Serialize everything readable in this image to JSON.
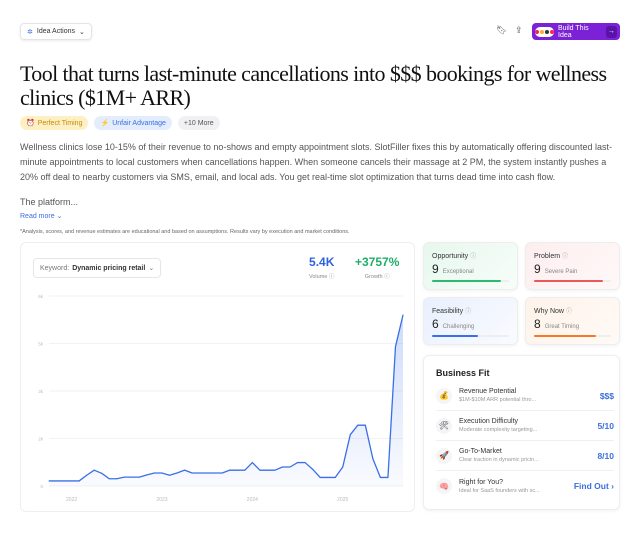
{
  "toolbar": {
    "idea_actions": "Idea Actions",
    "build_label": "Build This Idea"
  },
  "title": "Tool that turns last-minute cancellations into $$$ bookings for wellness clinics ($1M+ ARR)",
  "tags": [
    {
      "icon": "⏰",
      "label": "Perfect Timing",
      "color": "#fdf0c4",
      "text": "#c98a00"
    },
    {
      "icon": "⚡",
      "label": "Unfair Advantage",
      "color": "#e3edfd",
      "text": "#3b6fe0"
    },
    {
      "icon": "",
      "label": "+10 More",
      "color": "#f1f1f3",
      "text": "#555"
    }
  ],
  "description": "Wellness clinics lose 10-15% of their revenue to no-shows and empty appointment slots. SlotFiller fixes this by automatically offering discounted last-minute appointments to local customers when cancellations happen. When someone cancels their massage at 2 PM, the system instantly pushes a 20% off deal to nearby customers via SMS, email, and local ads. You get real-time slot optimization that turns dead time into cash flow.",
  "more_text": "The platform...",
  "read_more": "Read more",
  "disclaimer": "*Analysis, scores, and revenue estimates are educational and based on assumptions. Results vary by execution and market conditions.",
  "trend": {
    "keyword_label": "Keyword:",
    "keyword": "Dynamic pricing retail",
    "volume": "5.4K",
    "volume_label": "Volume",
    "growth": "+3757%",
    "growth_label": "Growth",
    "line_color": "#3b6fe8"
  },
  "chart_data": {
    "type": "area",
    "ylim": [
      0,
      6000
    ],
    "y_ticks": [
      "0",
      "2k",
      "3k",
      "5k",
      "6k"
    ],
    "x_ticks": [
      "2022",
      "2023",
      "2024",
      "2025"
    ],
    "x": [
      "2021-10",
      "2021-11",
      "2021-12",
      "2022-01",
      "2022-02",
      "2022-03",
      "2022-04",
      "2022-05",
      "2022-06",
      "2022-07",
      "2022-08",
      "2022-09",
      "2022-10",
      "2022-11",
      "2022-12",
      "2023-01",
      "2023-02",
      "2023-03",
      "2023-04",
      "2023-05",
      "2023-06",
      "2023-07",
      "2023-08",
      "2023-09",
      "2023-10",
      "2023-11",
      "2023-12",
      "2024-01",
      "2024-02",
      "2024-03",
      "2024-04",
      "2024-05",
      "2024-06",
      "2024-07",
      "2024-08",
      "2024-09",
      "2024-10",
      "2024-11",
      "2024-12",
      "2025-01",
      "2025-02",
      "2025-03",
      "2025-04",
      "2025-05",
      "2025-06",
      "2025-07",
      "2025-08",
      "2025-09"
    ],
    "values": [
      160,
      160,
      160,
      160,
      160,
      340,
      500,
      400,
      230,
      230,
      280,
      280,
      280,
      350,
      410,
      410,
      340,
      410,
      500,
      410,
      410,
      410,
      410,
      410,
      500,
      500,
      500,
      740,
      500,
      500,
      500,
      600,
      600,
      740,
      740,
      530,
      270,
      270,
      270,
      600,
      1620,
      1920,
      1920,
      860,
      270,
      270,
      4400,
      5400
    ]
  },
  "scores": [
    {
      "title": "Opportunity",
      "value": "9",
      "label": "Exceptional",
      "fraction": 0.9,
      "color": "#2eb872",
      "bg": "linear-gradient(135deg,#e7f8ee,#f7fdf9)"
    },
    {
      "title": "Problem",
      "value": "9",
      "label": "Severe Pain",
      "fraction": 0.9,
      "color": "#e85a5a",
      "bg": "linear-gradient(135deg,#fdeeee,#fff8f8)"
    },
    {
      "title": "Feasibility",
      "value": "6",
      "label": "Challenging",
      "fraction": 0.6,
      "color": "#3b6fe8",
      "bg": "linear-gradient(135deg,#e9f0fd,#f9fbff)"
    },
    {
      "title": "Why Now",
      "value": "8",
      "label": "Great Timing",
      "fraction": 0.8,
      "color": "#f47a2a",
      "bg": "linear-gradient(135deg,#fef3e9,#fffaf6)"
    }
  ],
  "business_fit": {
    "title": "Business Fit",
    "rows": [
      {
        "icon": "💰",
        "title": "Revenue Potential",
        "sub": "$1M-$10M ARR potential thro...",
        "value": "$$$"
      },
      {
        "icon": "🛠",
        "title": "Execution Difficulty",
        "sub": "Moderate complexity targeting...",
        "value": "5/10"
      },
      {
        "icon": "🚀",
        "title": "Go-To-Market",
        "sub": "Clear traction in dynamic pricin...",
        "value": "8/10"
      },
      {
        "icon": "🧠",
        "title": "Right for You?",
        "sub": "Ideal for SaaS founders with sc...",
        "value": "Find Out ›"
      }
    ]
  }
}
